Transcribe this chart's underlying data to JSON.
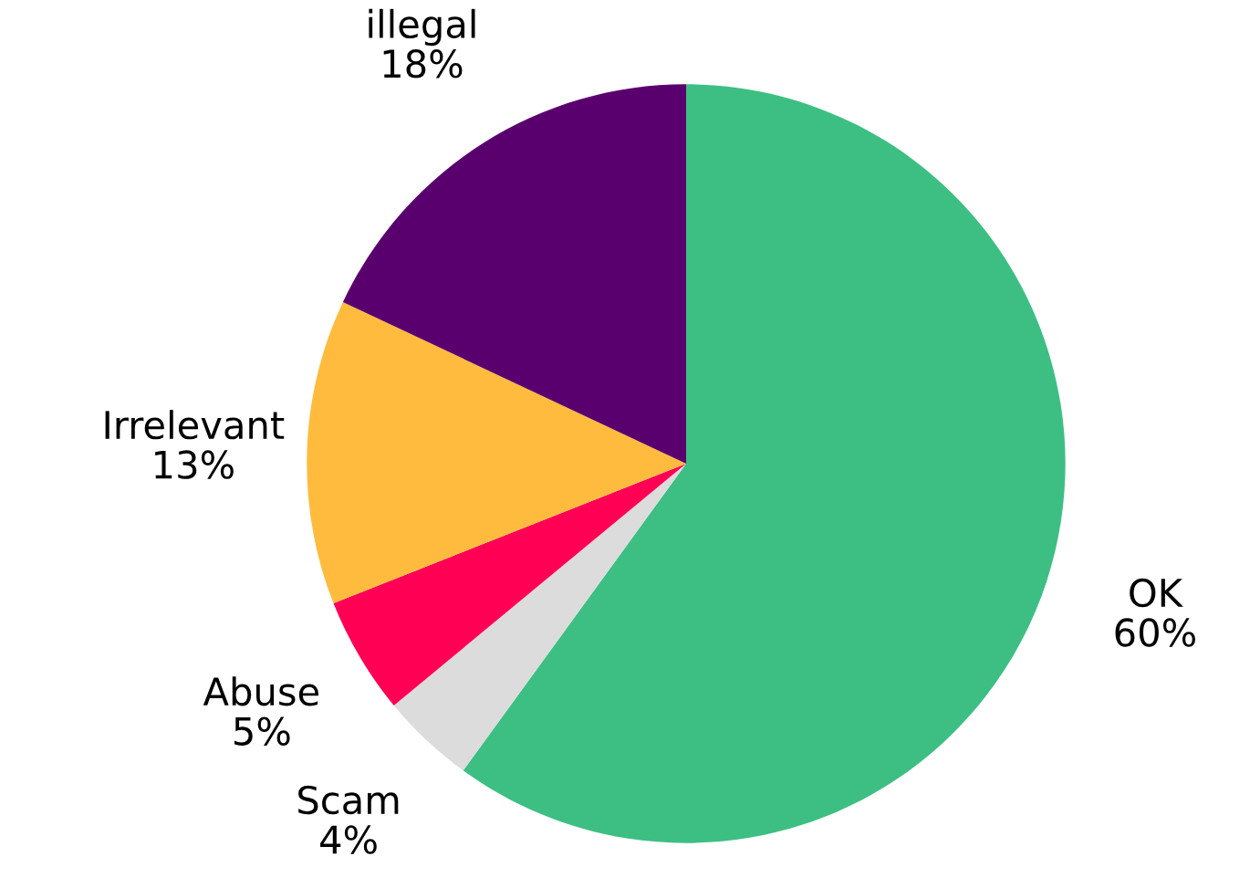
{
  "chart_data": {
    "type": "pie",
    "categories": [
      "OK",
      "Scam",
      "Abuse",
      "Irrelevant",
      "illegal"
    ],
    "values": [
      60,
      4,
      5,
      13,
      18
    ],
    "colors": [
      "#3dbf84",
      "#dcdcdc",
      "#ff0055",
      "#ffbb3d",
      "#5a006e"
    ],
    "value_labels": [
      "60%",
      "4%",
      "5%",
      "13%",
      "18%"
    ]
  }
}
